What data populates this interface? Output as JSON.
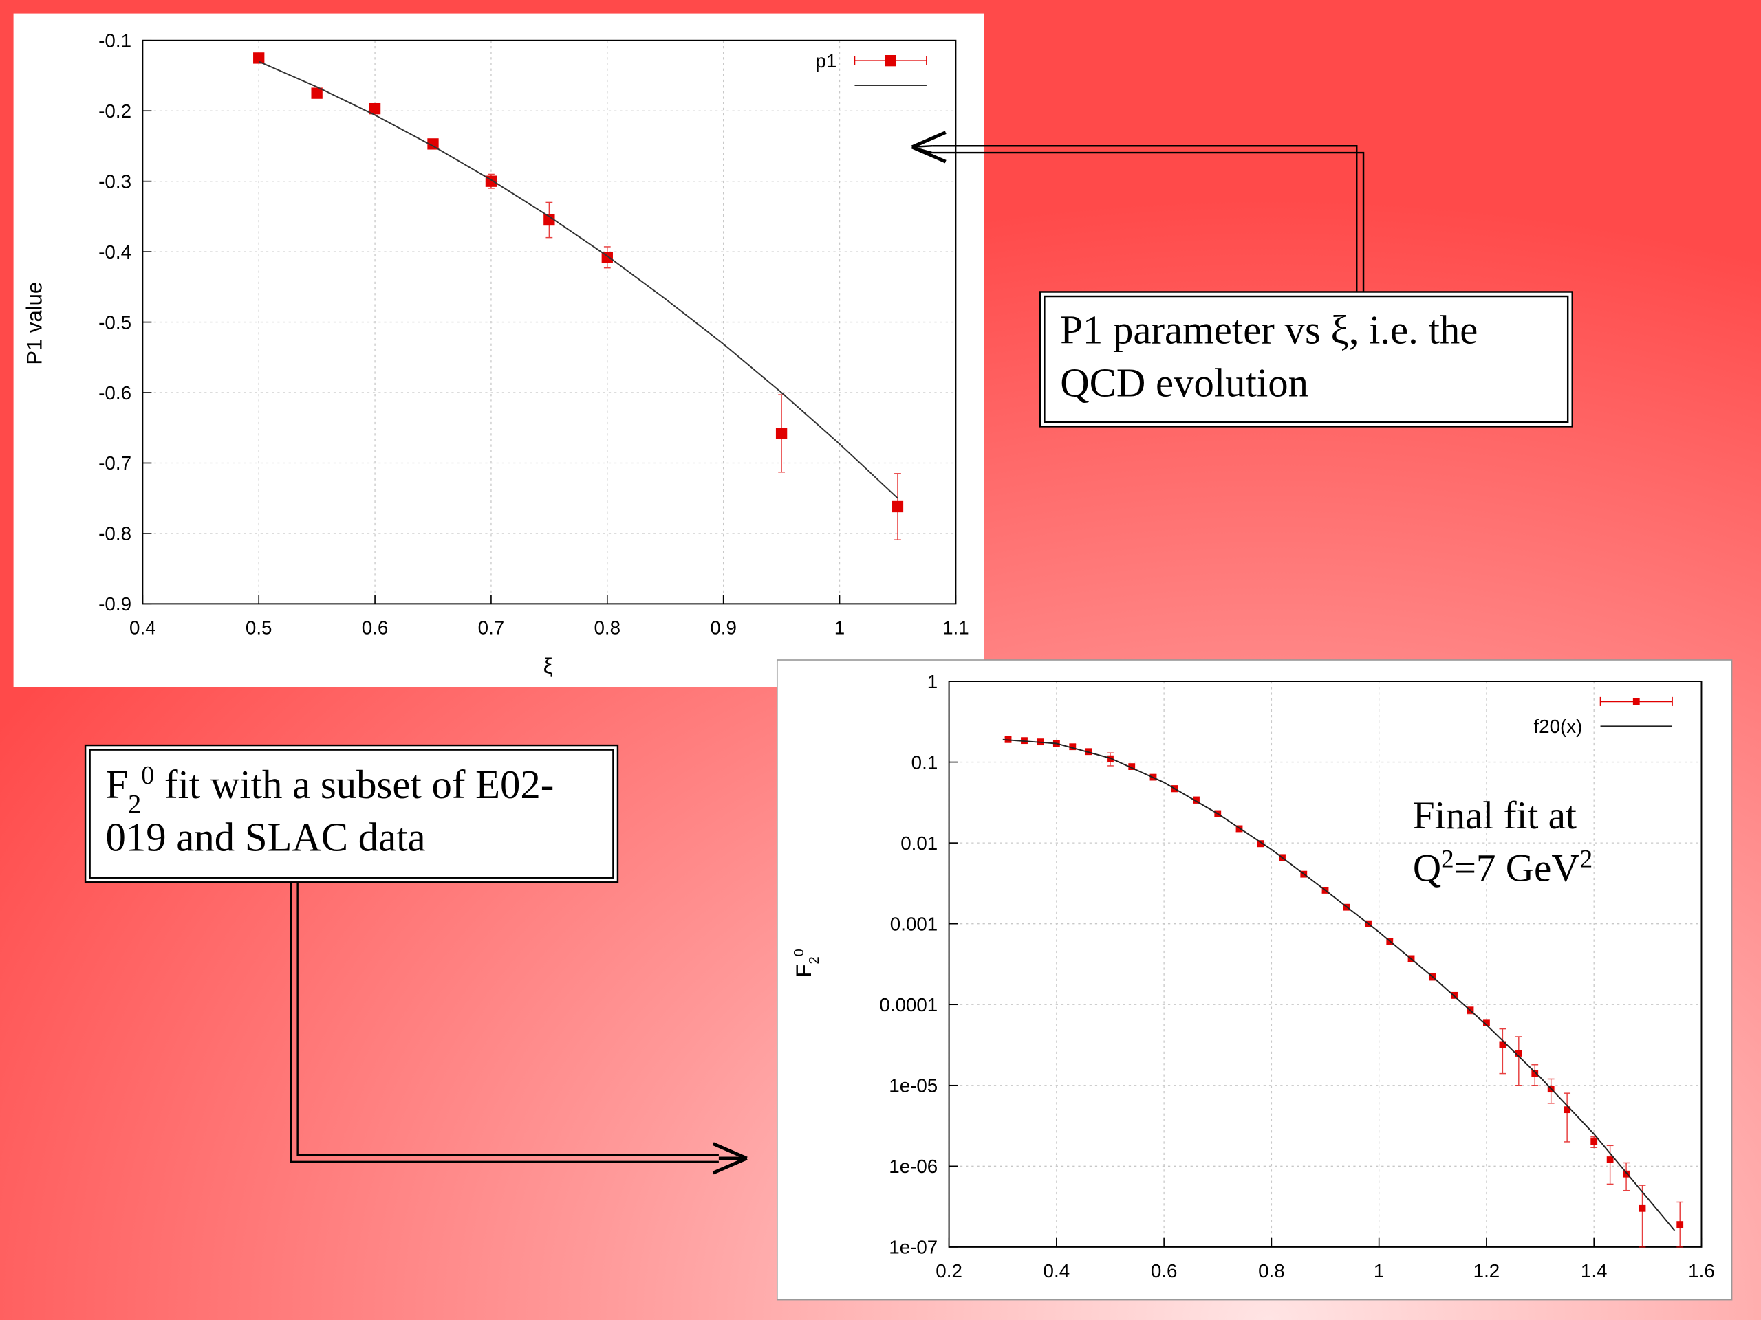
{
  "chart_data": [
    {
      "type": "scatter",
      "xlabel": [
        {
          "text": "ξ"
        }
      ],
      "ylabel": [
        {
          "text": "P1 value"
        }
      ],
      "xlim": [
        0.4,
        1.1
      ],
      "ylim": [
        -0.9,
        -0.1
      ],
      "xticks": [
        0.4,
        0.5,
        0.6,
        0.7,
        0.8,
        0.9,
        1,
        1.1
      ],
      "yticks": [
        -0.9,
        -0.8,
        -0.7,
        -0.6,
        -0.5,
        -0.4,
        -0.3,
        -0.2,
        -0.1
      ],
      "grid": true,
      "legend": "top-right",
      "series": [
        {
          "name": "p1",
          "color": "#e00000",
          "mode": "points",
          "x": [
            0.5,
            0.55,
            0.6,
            0.65,
            0.7,
            0.75,
            0.8,
            0.95,
            1.05
          ],
          "values": [
            -0.125,
            -0.175,
            -0.197,
            -0.247,
            -0.3,
            -0.355,
            -0.408,
            -0.658,
            -0.762
          ],
          "errors": [
            0.005,
            0.005,
            0.005,
            0.005,
            0.01,
            0.025,
            0.015,
            0.055,
            0.047
          ]
        },
        {
          "color": "#333333",
          "mode": "line",
          "x": [
            0.5,
            0.55,
            0.6,
            0.65,
            0.7,
            0.75,
            0.8,
            0.85,
            0.9,
            0.95,
            1.0,
            1.05
          ],
          "values": [
            -0.13,
            -0.166,
            -0.206,
            -0.25,
            -0.298,
            -0.35,
            -0.406,
            -0.467,
            -0.531,
            -0.6,
            -0.673,
            -0.75
          ]
        }
      ]
    },
    {
      "type": "scatter",
      "log_y": true,
      "ylabel": [
        {
          "text": "F"
        },
        {
          "text": "2",
          "shift": "sub"
        },
        {
          "text": "0",
          "shift": "super"
        }
      ],
      "xlim": [
        0.2,
        1.6
      ],
      "ylim": [
        1e-07,
        1
      ],
      "xticks": [
        0.2,
        0.4,
        0.6,
        0.8,
        1,
        1.2,
        1.4,
        1.6
      ],
      "yticks": [
        {
          "value": 1e-07,
          "label": "1e-07"
        },
        {
          "value": 1e-06,
          "label": "1e-06"
        },
        {
          "value": 1e-05,
          "label": "1e-05"
        },
        0.0001,
        0.001,
        0.01,
        0.1,
        1
      ],
      "grid": true,
      "legend": "top-right",
      "annotations": [
        [
          {
            "text": "Final fit at"
          }
        ],
        [
          {
            "text": "Q"
          },
          {
            "text": "2",
            "shift": "super"
          },
          {
            "text": "=7 GeV"
          },
          {
            "text": "2",
            "shift": "super"
          }
        ]
      ],
      "series": [
        {
          "color": "#e00000",
          "mode": "points",
          "x": [
            0.31,
            0.34,
            0.37,
            0.4,
            0.43,
            0.46,
            0.5,
            0.54,
            0.58,
            0.62,
            0.66,
            0.7,
            0.74,
            0.78,
            0.82,
            0.86,
            0.9,
            0.94,
            0.98,
            1.02,
            1.06,
            1.1,
            1.14,
            1.17,
            1.2,
            1.23,
            1.26,
            1.29,
            1.32,
            1.35,
            1.4,
            1.43,
            1.46,
            1.49,
            1.56
          ],
          "values": [
            0.19,
            0.185,
            0.178,
            0.17,
            0.155,
            0.135,
            0.11,
            0.088,
            0.065,
            0.047,
            0.034,
            0.023,
            0.015,
            0.0098,
            0.0066,
            0.0041,
            0.0026,
            0.0016,
            0.001,
            0.0006,
            0.00037,
            0.00022,
            0.00013,
            8.5e-05,
            6e-05,
            3.2e-05,
            2.5e-05,
            1.4e-05,
            9e-06,
            5e-06,
            2e-06,
            1.2e-06,
            8e-07,
            3e-07,
            1.9e-07
          ],
          "errors": [
            0.012,
            0.012,
            0.012,
            0.011,
            0.011,
            0.01,
            0.02,
            0.006,
            0.005,
            0.004,
            0.003,
            0.002,
            0.0012,
            0.0008,
            0.0005,
            0.0003,
            0.0002,
            0.00012,
            8e-05,
            5e-05,
            3e-05,
            2e-05,
            1e-05,
            8e-06,
            5e-06,
            1.8e-05,
            1.5e-05,
            4e-06,
            3e-06,
            3e-06,
            3e-07,
            6e-07,
            3e-07,
            2.8e-07,
            1.7e-07
          ]
        },
        {
          "name": "f20(x)",
          "color": "#222222",
          "mode": "line",
          "x": [
            0.3,
            0.4,
            0.5,
            0.6,
            0.7,
            0.8,
            0.9,
            1.0,
            1.1,
            1.2,
            1.3,
            1.4,
            1.5,
            1.55
          ],
          "values": [
            0.19,
            0.17,
            0.112,
            0.056,
            0.023,
            0.0083,
            0.0026,
            0.00079,
            0.00022,
            5.6e-05,
            1.26e-05,
            2.5e-06,
            4e-07,
            1.6e-07
          ]
        }
      ]
    }
  ],
  "callouts": [
    {
      "lines": [
        [
          {
            "text": "P1 parameter vs ξ, i.e. the"
          }
        ],
        [
          {
            "text": "QCD evolution"
          }
        ]
      ]
    },
    {
      "lines": [
        [
          {
            "text": "F"
          },
          {
            "text": "2",
            "shift": "sub"
          },
          {
            "text": "0",
            "shift": "super"
          },
          {
            "text": " fit with a subset of E02-"
          }
        ],
        [
          {
            "text": "019 and SLAC data"
          }
        ]
      ]
    }
  ]
}
